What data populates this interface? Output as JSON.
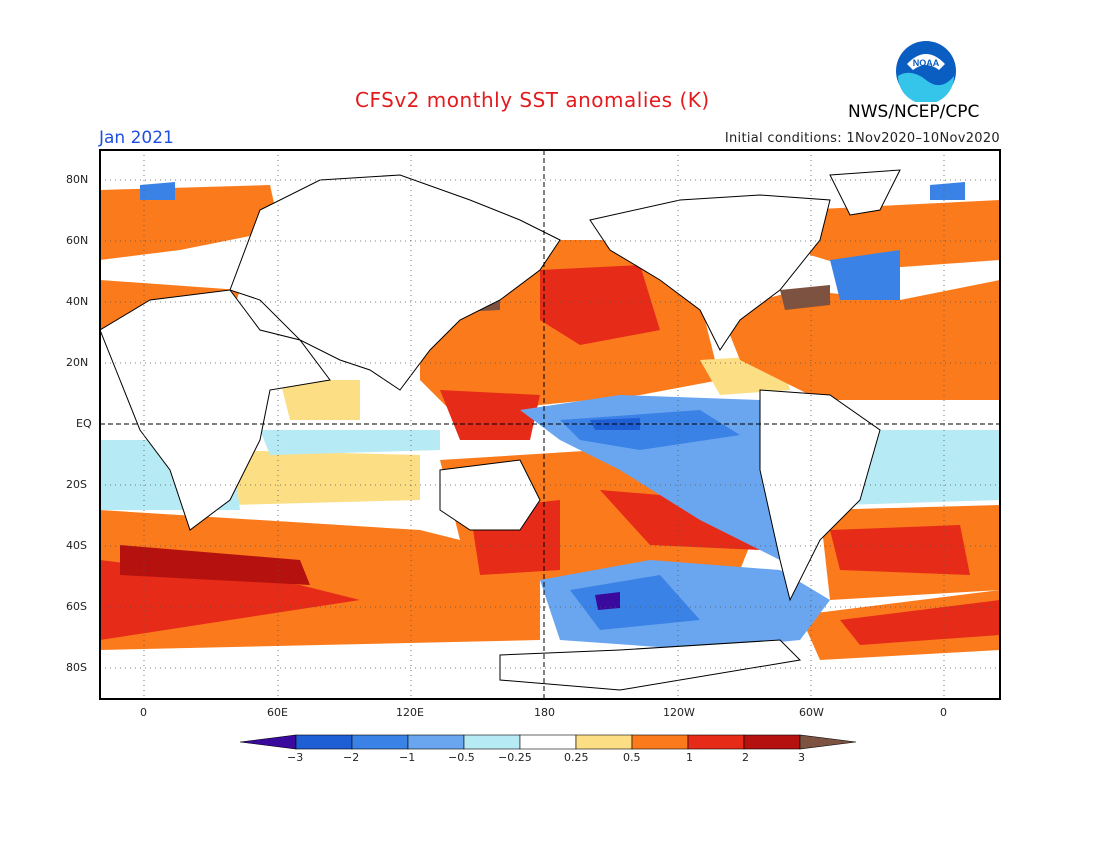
{
  "header": {
    "title": "CFSv2 monthly SST anomalies (K)",
    "month": "Jan 2021",
    "initial_conditions": "Initial conditions: 1Nov2020–10Nov2020",
    "agency": "NWS/NCEP/CPC",
    "logo_text": "NOAA"
  },
  "map": {
    "lat_labels": [
      "80N",
      "60N",
      "40N",
      "20N",
      "EQ",
      "20S",
      "40S",
      "60S",
      "80S"
    ],
    "lon_labels": [
      "0",
      "60E",
      "120E",
      "180",
      "120W",
      "60W",
      "0"
    ],
    "projection": "cylindrical equidistant, centered 180",
    "grid": "dotted every 20 degrees latitude, 60 degrees longitude; dashed equator and dateline"
  },
  "legend": {
    "tick_labels": [
      "−3",
      "−2",
      "−1",
      "−0.5",
      "−0.25",
      "0.25",
      "0.5",
      "1",
      "2",
      "3"
    ],
    "colors": [
      "#3a0a9e",
      "#1f5fd6",
      "#3b82e6",
      "#6aa6f0",
      "#b6eaf4",
      "#ffffff",
      "#fcdf85",
      "#fb7a1c",
      "#e62b18",
      "#b5120f",
      "#7d5240"
    ]
  }
}
